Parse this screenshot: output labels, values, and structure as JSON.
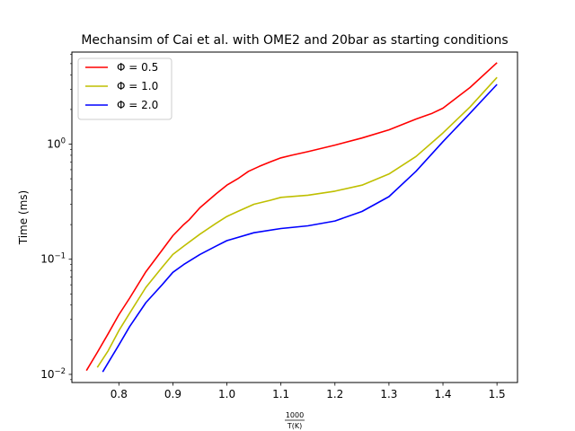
{
  "chart_data": {
    "type": "line",
    "title": "Mechansim of Cai et al. with OME2 and 20bar as starting conditions",
    "xlabel": {
      "numerator": "1000",
      "denominator": "T(K)"
    },
    "ylabel": "Time (ms)",
    "xlim": [
      0.713,
      1.538
    ],
    "ylim": [
      0.0085,
      6.3
    ],
    "yscale": "log",
    "grid": false,
    "legend_position": "top-left",
    "x_ticks": [
      {
        "value": 0.8,
        "label": "0.8"
      },
      {
        "value": 0.9,
        "label": "0.9"
      },
      {
        "value": 1.0,
        "label": "1.0"
      },
      {
        "value": 1.1,
        "label": "1.1"
      },
      {
        "value": 1.2,
        "label": "1.2"
      },
      {
        "value": 1.3,
        "label": "1.3"
      },
      {
        "value": 1.4,
        "label": "1.4"
      },
      {
        "value": 1.5,
        "label": "1.5"
      }
    ],
    "y_ticks": [
      {
        "value": 0.01,
        "base": "10",
        "exp": "−2"
      },
      {
        "value": 0.1,
        "base": "10",
        "exp": "−1"
      },
      {
        "value": 1,
        "base": "10",
        "exp": "0"
      }
    ],
    "series": [
      {
        "name": "Φ = 0.5",
        "color": "#ff0000",
        "x": [
          0.74,
          0.76,
          0.78,
          0.8,
          0.82,
          0.85,
          0.88,
          0.9,
          0.92,
          0.93,
          0.95,
          0.98,
          1.0,
          1.02,
          1.04,
          1.06,
          1.08,
          1.1,
          1.12,
          1.15,
          1.2,
          1.25,
          1.3,
          1.35,
          1.38,
          1.4,
          1.45,
          1.5
        ],
        "y": [
          0.0108,
          0.0155,
          0.0225,
          0.033,
          0.046,
          0.078,
          0.12,
          0.16,
          0.2,
          0.22,
          0.28,
          0.37,
          0.44,
          0.5,
          0.58,
          0.64,
          0.7,
          0.76,
          0.8,
          0.86,
          0.98,
          1.13,
          1.33,
          1.65,
          1.85,
          2.05,
          3.1,
          5.1
        ]
      },
      {
        "name": "Φ = 1.0",
        "color": "#bfbf00",
        "x": [
          0.76,
          0.78,
          0.8,
          0.82,
          0.85,
          0.88,
          0.9,
          0.92,
          0.95,
          0.98,
          1.0,
          1.02,
          1.05,
          1.08,
          1.1,
          1.15,
          1.2,
          1.25,
          1.3,
          1.35,
          1.4,
          1.45,
          1.5
        ],
        "y": [
          0.0115,
          0.016,
          0.024,
          0.034,
          0.057,
          0.085,
          0.11,
          0.13,
          0.165,
          0.205,
          0.235,
          0.26,
          0.3,
          0.325,
          0.345,
          0.36,
          0.39,
          0.44,
          0.55,
          0.78,
          1.25,
          2.1,
          3.8
        ]
      },
      {
        "name": "Φ = 2.0",
        "color": "#0000ff",
        "x": [
          0.77,
          0.8,
          0.82,
          0.85,
          0.88,
          0.9,
          0.92,
          0.95,
          0.98,
          1.0,
          1.05,
          1.1,
          1.15,
          1.2,
          1.25,
          1.3,
          1.35,
          1.4,
          1.45,
          1.5
        ],
        "y": [
          0.0105,
          0.018,
          0.026,
          0.042,
          0.06,
          0.077,
          0.09,
          0.11,
          0.13,
          0.145,
          0.17,
          0.185,
          0.195,
          0.215,
          0.26,
          0.35,
          0.58,
          1.05,
          1.85,
          3.3
        ]
      }
    ]
  }
}
